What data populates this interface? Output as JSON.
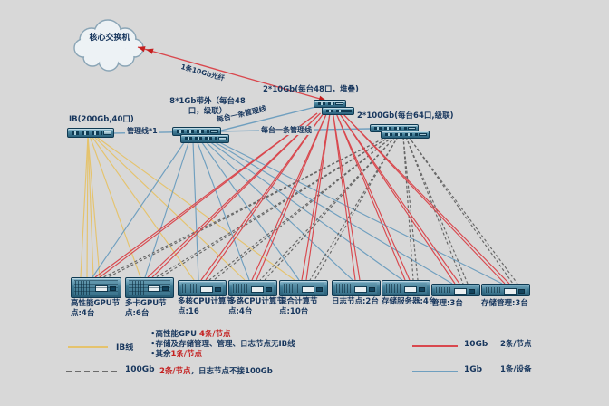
{
  "diagram": {
    "cloud_label": "核心交换机",
    "fiber_label": "1条10Gb光纤",
    "switches": {
      "ib": {
        "label": "IB(200Gb,40口)"
      },
      "g1": {
        "label": "8*1Gb带外（每台48口，级联）"
      },
      "g10": {
        "label": "2*10Gb(每台48口，堆叠)"
      },
      "g100": {
        "label": "2*100Gb(每台64口,级联)"
      }
    },
    "link_labels": {
      "mgmt_ib": "管理线*1",
      "mgmt_diag": "每台一条管理线",
      "mgmt_horiz": "每台一条管理线"
    },
    "colors": {
      "ib": "#e5c36d",
      "g1": "#6f9fbf",
      "g10": "#d9484e",
      "g100": "#666666"
    },
    "nodes": [
      {
        "label": "高性能GPU节点:4台",
        "lines": {
          "ib": 4,
          "g1": 1,
          "g10": 2,
          "g100": 2
        }
      },
      {
        "label": "多卡GPU节点:6台",
        "lines": {
          "ib": 1,
          "g1": 1,
          "g10": 2,
          "g100": 2
        }
      },
      {
        "label": "多核CPU计算节点:16",
        "lines": {
          "ib": 1,
          "g1": 1,
          "g10": 2,
          "g100": 2
        }
      },
      {
        "label": "多路CPU计算节点:4台",
        "lines": {
          "ib": 1,
          "g1": 1,
          "g10": 2,
          "g100": 2
        }
      },
      {
        "label": "混合计算节点:10台",
        "lines": {
          "ib": 1,
          "g1": 1,
          "g10": 2,
          "g100": 2
        }
      },
      {
        "label": "日志节点:2台",
        "lines": {
          "ib": 0,
          "g1": 1,
          "g10": 2,
          "g100": 0
        }
      },
      {
        "label": "存储服务器:4台",
        "lines": {
          "ib": 0,
          "g1": 1,
          "g10": 2,
          "g100": 2
        }
      },
      {
        "label": "管理:3台",
        "lines": {
          "ib": 0,
          "g1": 1,
          "g10": 2,
          "g100": 2
        }
      },
      {
        "label": "存储管理:3台",
        "lines": {
          "ib": 0,
          "g1": 1,
          "g10": 2,
          "g100": 2
        }
      }
    ]
  },
  "legend": {
    "ib": {
      "label": "IB线",
      "notes": [
        {
          "prefix": "高性能GPU ",
          "highlight": "4条/节点"
        },
        {
          "prefix": "存储及存储管理、管理、日志节点无IB线",
          "highlight": ""
        },
        {
          "prefix": "其余",
          "highlight": "1条/节点"
        }
      ]
    },
    "g100": {
      "label": "100Gb",
      "highlight": "2条/节点",
      "rest": "，日志节点不接100Gb"
    },
    "g10": {
      "label": "10Gb",
      "note": "2条/节点"
    },
    "g1": {
      "label": "1Gb",
      "note": "1条/设备"
    }
  }
}
